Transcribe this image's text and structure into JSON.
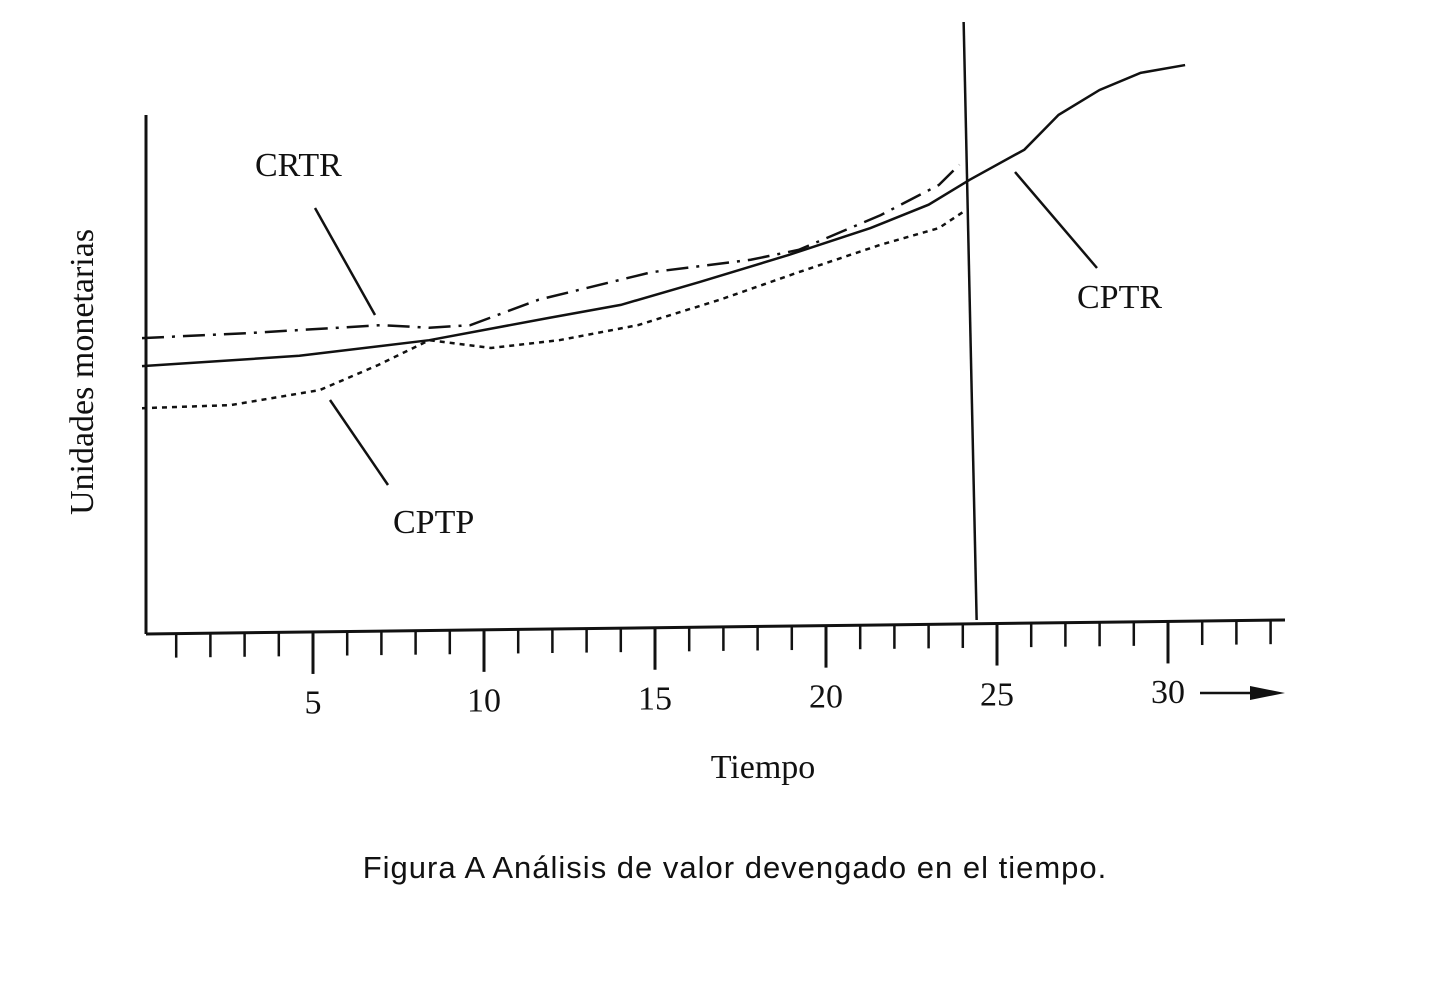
{
  "chart_data": {
    "type": "line",
    "x_label": "Tiempo",
    "y_label": "Unidades monetarias",
    "caption": "Figura A   Análisis de valor devengado en el tiempo.",
    "xlim": [
      0,
      33.5
    ],
    "ylim": [
      0,
      110
    ],
    "xticks": [
      5,
      10,
      15,
      20,
      25,
      30
    ],
    "minor_xticks": [
      1,
      2,
      3,
      4,
      6,
      7,
      8,
      9,
      11,
      12,
      13,
      14,
      16,
      17,
      18,
      19,
      21,
      22,
      23,
      24,
      26,
      27,
      28,
      29,
      31,
      32,
      33
    ],
    "vline": 24.2,
    "series": [
      {
        "name": "CRTR",
        "color": "#111111",
        "style": "dashdot",
        "x": [
          0,
          3.2,
          7.0,
          8.4,
          9.6,
          11.6,
          14.9,
          17.8,
          19.2,
          21.6,
          23.3,
          23.9
        ],
        "values": [
          57.0,
          58.0,
          59.5,
          59.0,
          59.5,
          64.4,
          69.7,
          72.1,
          74.0,
          80.7,
          86.5,
          90.4
        ]
      },
      {
        "name": "CPTR",
        "color": "#111111",
        "style": "solid",
        "x": [
          0,
          4.6,
          8.4,
          11.9,
          14.0,
          16.3,
          18.9,
          21.3,
          23.0,
          24.2,
          25.8,
          26.8,
          28.0,
          29.2,
          30.5
        ],
        "values": [
          51.6,
          53.6,
          56.6,
          60.9,
          63.4,
          67.8,
          73.0,
          78.2,
          82.7,
          87.5,
          93.3,
          100.0,
          104.8,
          108.1,
          109.6
        ]
      },
      {
        "name": "CPTP",
        "color": "#111111",
        "style": "dotted",
        "x": [
          0,
          2.6,
          5.2,
          6.9,
          8.4,
          10.2,
          12.2,
          14.5,
          16.9,
          19.2,
          21.6,
          23.3,
          24.1
        ],
        "values": [
          43.5,
          44.1,
          47.0,
          51.8,
          56.6,
          55.1,
          56.6,
          59.5,
          64.4,
          69.7,
          75.0,
          78.2,
          81.7
        ]
      }
    ]
  }
}
